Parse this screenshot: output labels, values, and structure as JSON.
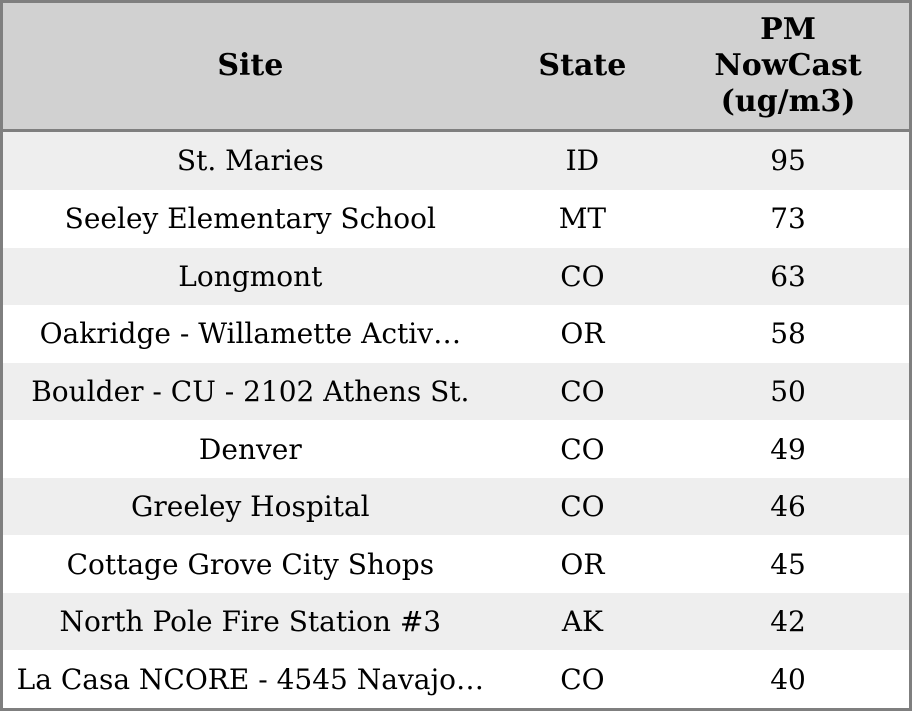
{
  "colors": {
    "border": "#7f7f7f",
    "header_bg": "#d1d1d1",
    "row_stripe_bg": "#eeeeee",
    "row_bg": "#ffffff",
    "text": "#000000"
  },
  "table": {
    "columns": [
      {
        "label": "Site"
      },
      {
        "label": "State"
      },
      {
        "label": "PM\nNowCast\n(ug/m3)"
      }
    ]
  },
  "chart_data": {
    "type": "table",
    "columns": [
      "Site",
      "State",
      "PM NowCast (ug/m3)"
    ],
    "rows": [
      [
        "St. Maries",
        "ID",
        95
      ],
      [
        "Seeley Elementary School",
        "MT",
        73
      ],
      [
        "Longmont",
        "CO",
        63
      ],
      [
        "Oakridge - Willamette Activ…",
        "OR",
        58
      ],
      [
        "Boulder - CU - 2102 Athens St.",
        "CO",
        50
      ],
      [
        "Denver",
        "CO",
        49
      ],
      [
        "Greeley Hospital",
        "CO",
        46
      ],
      [
        "Cottage Grove City Shops",
        "OR",
        45
      ],
      [
        "North Pole Fire Station #3",
        "AK",
        42
      ],
      [
        "La Casa NCORE - 4545 Navajo…",
        "CO",
        40
      ]
    ],
    "layout": {
      "header_background": "#d1d1d1",
      "striped_rows": true,
      "cell_alignment": "center",
      "grid": "outer-border-and-header-rule"
    }
  }
}
